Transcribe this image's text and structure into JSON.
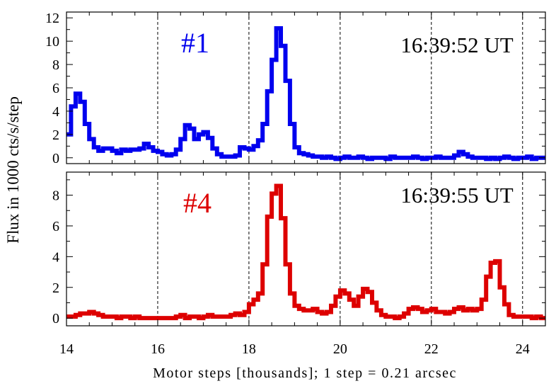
{
  "chart_data": {
    "type": "line",
    "xlabel": "Motor steps [thousands]; 1 step = 0.21 arcsec",
    "ylabel": "Flux in 1000 cts/s/step",
    "xlim": [
      14,
      24.5
    ],
    "x_ticks": [
      "14",
      "16",
      "18",
      "20",
      "22",
      "24"
    ],
    "grid": "vertical dashed lines at 16, 18, 20, 22, 24",
    "series": [
      {
        "name": "#1",
        "time": "16:39:52 UT",
        "color": "#0000ee",
        "ylim": [
          -0.5,
          12.5
        ],
        "y_ticks": [
          "0",
          "2",
          "4",
          "6",
          "8",
          "10",
          "12"
        ],
        "x": [
          14.0,
          14.1,
          14.2,
          14.3,
          14.4,
          14.5,
          14.6,
          14.7,
          14.8,
          14.9,
          15.0,
          15.1,
          15.2,
          15.3,
          15.4,
          15.5,
          15.6,
          15.7,
          15.8,
          15.9,
          16.0,
          16.1,
          16.2,
          16.3,
          16.4,
          16.5,
          16.6,
          16.7,
          16.8,
          16.9,
          17.0,
          17.1,
          17.2,
          17.3,
          17.4,
          17.5,
          17.6,
          17.7,
          17.8,
          17.9,
          18.0,
          18.1,
          18.2,
          18.3,
          18.4,
          18.5,
          18.6,
          18.7,
          18.8,
          18.9,
          19.0,
          19.1,
          19.2,
          19.3,
          19.4,
          19.5,
          19.6,
          19.7,
          19.8,
          19.9,
          20.0,
          20.1,
          20.2,
          20.3,
          20.4,
          20.5,
          20.6,
          20.7,
          20.8,
          20.9,
          21.0,
          21.1,
          21.2,
          21.3,
          21.4,
          21.5,
          21.6,
          21.7,
          21.8,
          21.9,
          22.0,
          22.1,
          22.2,
          22.3,
          22.4,
          22.5,
          22.6,
          22.7,
          22.8,
          22.9,
          23.0,
          23.1,
          23.2,
          23.3,
          23.4,
          23.5,
          23.6,
          23.7,
          23.8,
          23.9,
          24.0,
          24.1,
          24.2,
          24.3,
          24.4
        ],
        "y": [
          2.0,
          4.4,
          5.5,
          4.8,
          2.9,
          1.6,
          0.9,
          0.6,
          0.8,
          0.8,
          0.6,
          0.4,
          0.7,
          0.6,
          0.7,
          0.7,
          0.8,
          1.2,
          0.9,
          0.6,
          0.5,
          0.3,
          0.2,
          0.3,
          0.7,
          1.6,
          2.8,
          2.5,
          1.6,
          2.0,
          2.2,
          1.7,
          0.8,
          0.3,
          0.1,
          0.1,
          0.1,
          0.2,
          0.9,
          0.8,
          0.7,
          1.0,
          1.5,
          2.9,
          5.7,
          8.4,
          11.1,
          9.6,
          6.6,
          2.9,
          0.9,
          0.4,
          0.3,
          0.2,
          0.1,
          0.1,
          0.0,
          0.1,
          0.0,
          -0.1,
          0.0,
          0.1,
          0.0,
          0.0,
          0.1,
          0.0,
          -0.1,
          0.0,
          0.0,
          0.0,
          -0.1,
          0.1,
          0.0,
          0.0,
          0.0,
          0.0,
          0.1,
          0.0,
          -0.1,
          0.0,
          0.0,
          0.1,
          0.0,
          0.0,
          0.0,
          0.2,
          0.5,
          0.3,
          0.1,
          0.0,
          0.0,
          0.0,
          -0.1,
          0.0,
          -0.1,
          0.0,
          0.1,
          0.0,
          -0.1,
          0.0,
          0.0,
          0.1,
          -0.1,
          0.0,
          0.0
        ]
      },
      {
        "name": "#4",
        "time": "16:39:55 UT",
        "color": "#dd0000",
        "ylim": [
          -0.5,
          9.5
        ],
        "y_ticks": [
          "0",
          "2",
          "4",
          "6",
          "8"
        ],
        "x": [
          14.0,
          14.1,
          14.2,
          14.3,
          14.4,
          14.5,
          14.6,
          14.7,
          14.8,
          14.9,
          15.0,
          15.1,
          15.2,
          15.3,
          15.4,
          15.5,
          15.6,
          15.7,
          15.8,
          15.9,
          16.0,
          16.1,
          16.2,
          16.3,
          16.4,
          16.5,
          16.6,
          16.7,
          16.8,
          16.9,
          17.0,
          17.1,
          17.2,
          17.3,
          17.4,
          17.5,
          17.6,
          17.7,
          17.8,
          17.9,
          18.0,
          18.1,
          18.2,
          18.3,
          18.4,
          18.5,
          18.6,
          18.7,
          18.8,
          18.9,
          19.0,
          19.1,
          19.2,
          19.3,
          19.4,
          19.5,
          19.6,
          19.7,
          19.8,
          19.9,
          20.0,
          20.1,
          20.2,
          20.3,
          20.4,
          20.5,
          20.6,
          20.7,
          20.8,
          20.9,
          21.0,
          21.1,
          21.2,
          21.3,
          21.4,
          21.5,
          21.6,
          21.7,
          21.8,
          21.9,
          22.0,
          22.1,
          22.2,
          22.3,
          22.4,
          22.5,
          22.6,
          22.7,
          22.8,
          22.9,
          23.0,
          23.1,
          23.2,
          23.3,
          23.4,
          23.5,
          23.6,
          23.7,
          23.8,
          23.9,
          24.0,
          24.1,
          24.2,
          24.3,
          24.4
        ],
        "y": [
          0.1,
          0.1,
          0.2,
          0.3,
          0.3,
          0.4,
          0.3,
          0.2,
          0.1,
          0.1,
          0.1,
          0.0,
          0.1,
          0.1,
          0.0,
          0.1,
          0.0,
          0.0,
          0.0,
          0.0,
          0.0,
          0.0,
          0.0,
          0.0,
          0.1,
          0.2,
          0.0,
          0.1,
          0.1,
          0.0,
          0.1,
          0.2,
          0.1,
          0.1,
          0.1,
          0.1,
          0.2,
          0.3,
          0.2,
          0.4,
          0.9,
          1.2,
          1.6,
          3.5,
          6.6,
          8.1,
          8.6,
          6.5,
          3.5,
          1.6,
          0.8,
          0.6,
          0.5,
          0.5,
          0.6,
          0.4,
          0.3,
          0.4,
          0.8,
          1.4,
          1.8,
          1.6,
          1.2,
          0.8,
          1.4,
          1.9,
          1.7,
          1.0,
          0.5,
          0.2,
          0.1,
          0.1,
          0.0,
          0.1,
          0.3,
          0.6,
          0.7,
          0.6,
          0.4,
          0.5,
          0.6,
          0.4,
          0.4,
          0.3,
          0.4,
          0.6,
          0.7,
          0.5,
          0.6,
          0.5,
          0.6,
          1.2,
          2.7,
          3.6,
          3.7,
          2.0,
          0.9,
          0.2,
          0.1,
          0.1,
          0.1,
          0.1,
          0.0,
          0.1,
          0.0
        ]
      }
    ]
  }
}
